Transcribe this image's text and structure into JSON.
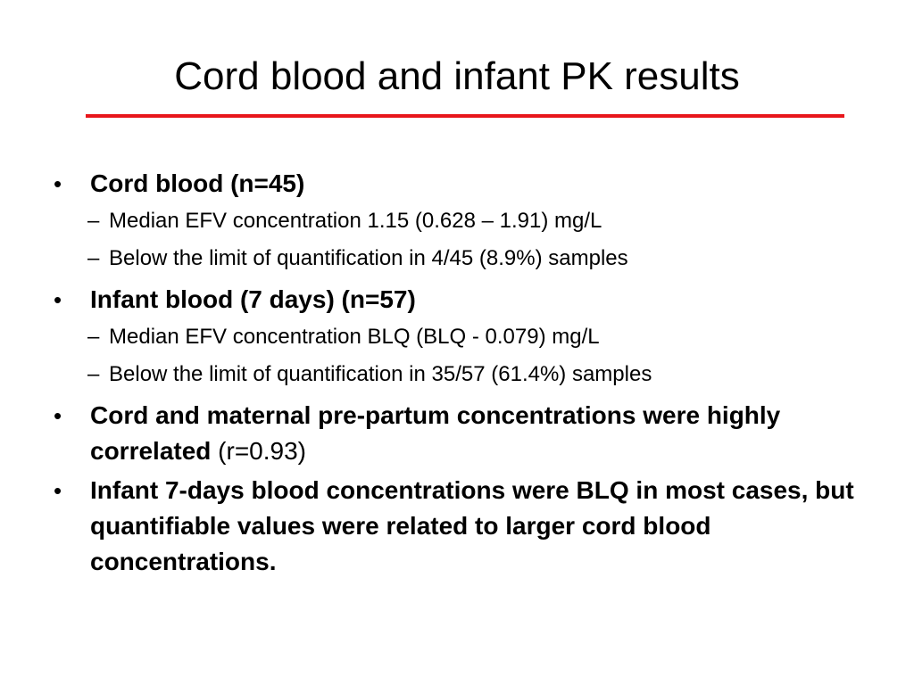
{
  "slide": {
    "title": "Cord blood and infant PK results",
    "accent_color": "#e8161b",
    "bullet_glyph": "•",
    "dash_glyph": "–",
    "items": [
      {
        "bold": "Cord blood (n=45)",
        "normal": "",
        "subitems": [
          "Median EFV concentration 1.15 (0.628 – 1.91) mg/L",
          "Below the limit of quantification in 4/45 (8.9%) samples"
        ]
      },
      {
        "bold": "Infant blood (7 days) (n=57)",
        "normal": "",
        "subitems": [
          "Median EFV concentration BLQ (BLQ - 0.079) mg/L",
          "Below the limit of quantification in 35/57 (61.4%) samples"
        ]
      },
      {
        "bold": "Cord and maternal pre-partum concentrations were highly correlated",
        "normal": " (r=0.93)",
        "subitems": []
      },
      {
        "bold": "Infant 7-days blood concentrations were BLQ in most cases, but quantifiable values were related to larger cord blood concentrations.",
        "normal": "",
        "subitems": []
      }
    ]
  }
}
